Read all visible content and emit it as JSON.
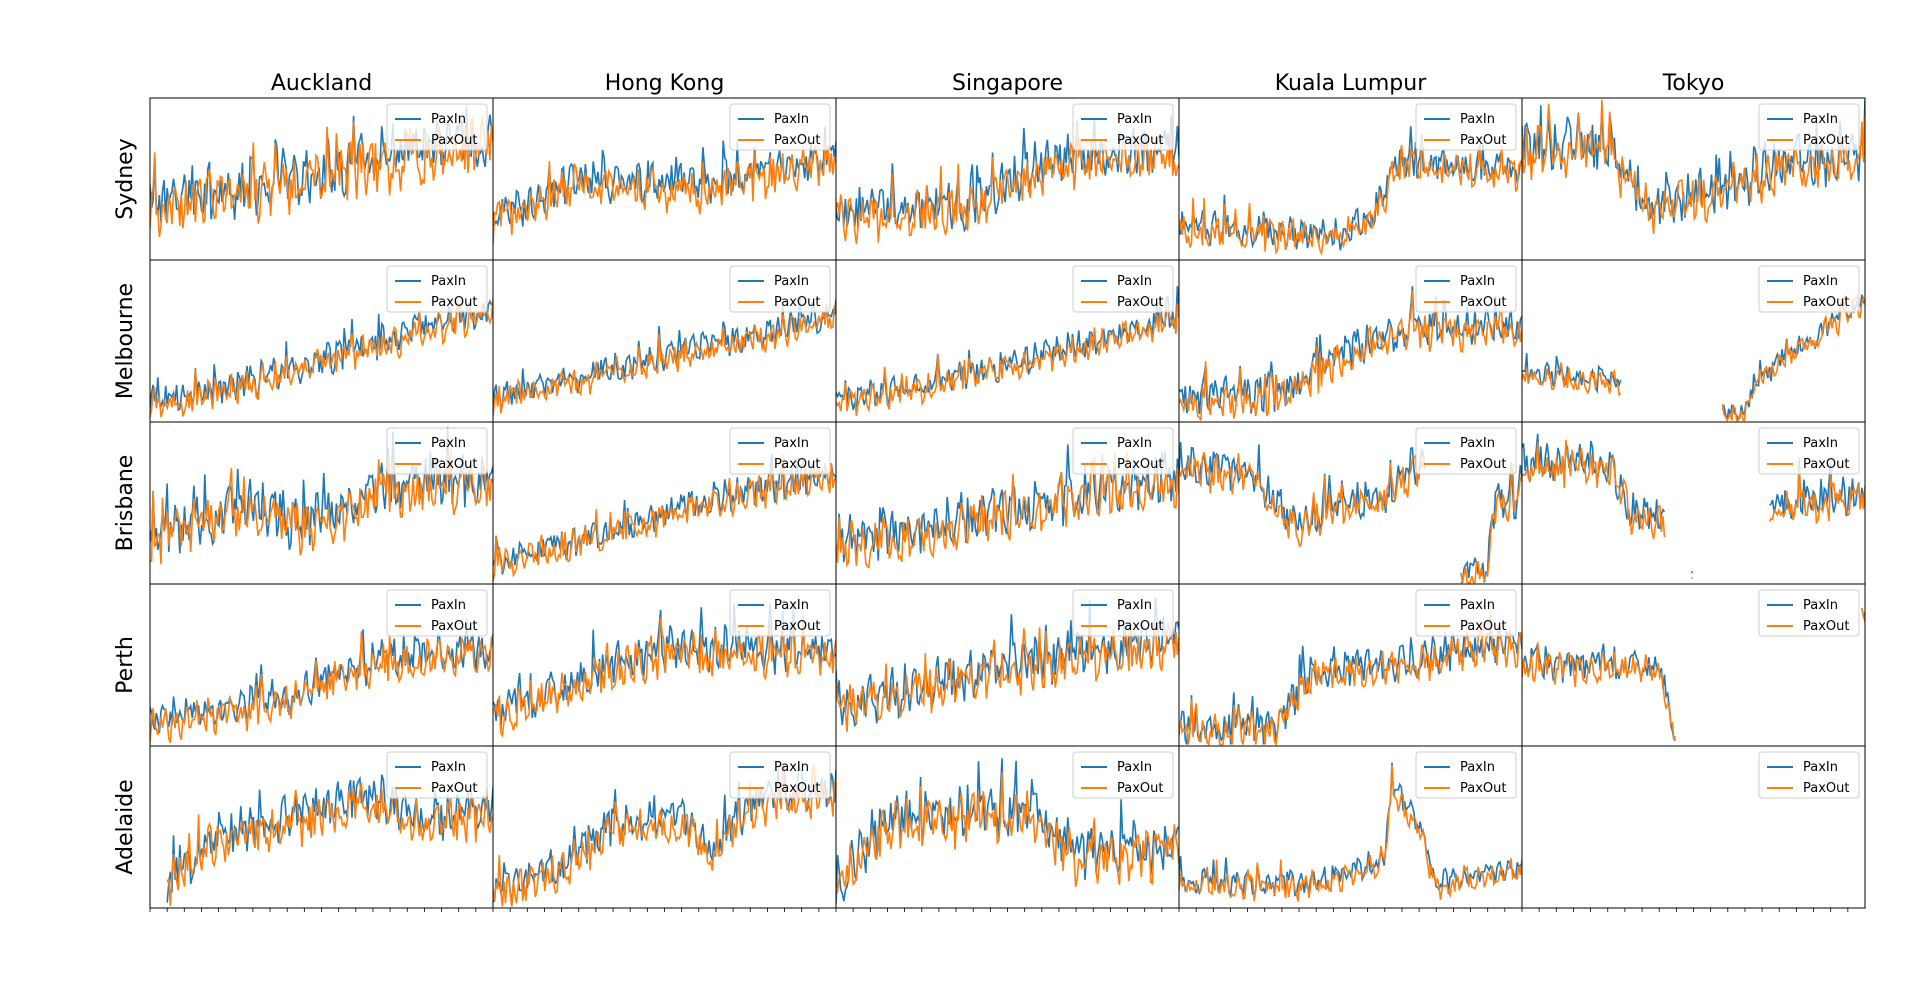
{
  "figure": {
    "columns": [
      "Auckland",
      "Hong Kong",
      "Singapore",
      "Kuala Lumpur",
      "Tokyo"
    ],
    "rows": [
      "Sydney",
      "Melbourne",
      "Brisbane",
      "Perth",
      "Adelaide"
    ],
    "legend": [
      "PaxIn",
      "PaxOut"
    ],
    "colors": {
      "PaxIn": "#1f77b4",
      "PaxOut": "#ff7f0e"
    }
  },
  "chart_data": {
    "type": "line",
    "grid": false,
    "legend_position": "upper right",
    "x_ticks_per_panel": 20,
    "y_scale": "independent per panel, no tick labels",
    "series_names": [
      "PaxIn",
      "PaxOut"
    ],
    "panels": [
      {
        "row": "Sydney",
        "col": "Auckland",
        "profile": [
          [
            0,
            0.35
          ],
          [
            0.3,
            0.45
          ],
          [
            0.6,
            0.6
          ],
          [
            1,
            0.75
          ]
        ],
        "amp": 0.18,
        "seed": 11
      },
      {
        "row": "Sydney",
        "col": "Hong Kong",
        "profile": [
          [
            0,
            0.25
          ],
          [
            0.25,
            0.5
          ],
          [
            0.6,
            0.45
          ],
          [
            1,
            0.65
          ]
        ],
        "amp": 0.13,
        "seed": 12
      },
      {
        "row": "Sydney",
        "col": "Singapore",
        "profile": [
          [
            0,
            0.3
          ],
          [
            0.4,
            0.35
          ],
          [
            0.6,
            0.6
          ],
          [
            1,
            0.68
          ]
        ],
        "amp": 0.15,
        "seed": 13
      },
      {
        "row": "Sydney",
        "col": "Kuala Lumpur",
        "profile": [
          [
            0,
            0.2
          ],
          [
            0.25,
            0.18
          ],
          [
            0.45,
            0.15
          ],
          [
            0.55,
            0.25
          ],
          [
            0.65,
            0.6
          ],
          [
            1,
            0.55
          ]
        ],
        "amp": 0.1,
        "seed": 14
      },
      {
        "row": "Sydney",
        "col": "Tokyo",
        "profile": [
          [
            0,
            0.7
          ],
          [
            0.25,
            0.72
          ],
          [
            0.35,
            0.35
          ],
          [
            0.6,
            0.45
          ],
          [
            0.75,
            0.6
          ],
          [
            1,
            0.65
          ]
        ],
        "amp": 0.16,
        "seed": 15
      },
      {
        "row": "Melbourne",
        "col": "Auckland",
        "profile": [
          [
            0,
            0.12
          ],
          [
            0.3,
            0.25
          ],
          [
            0.6,
            0.45
          ],
          [
            1,
            0.7
          ]
        ],
        "amp": 0.1,
        "seed": 21
      },
      {
        "row": "Melbourne",
        "col": "Hong Kong",
        "profile": [
          [
            0,
            0.15
          ],
          [
            0.4,
            0.35
          ],
          [
            0.8,
            0.55
          ],
          [
            1,
            0.68
          ]
        ],
        "amp": 0.09,
        "seed": 22
      },
      {
        "row": "Melbourne",
        "col": "Singapore",
        "profile": [
          [
            0,
            0.12
          ],
          [
            0.5,
            0.35
          ],
          [
            1,
            0.65
          ]
        ],
        "amp": 0.09,
        "seed": 23
      },
      {
        "row": "Melbourne",
        "col": "Kuala Lumpur",
        "profile": [
          [
            0,
            0.15
          ],
          [
            0.3,
            0.18
          ],
          [
            0.5,
            0.45
          ],
          [
            0.7,
            0.6
          ],
          [
            1,
            0.58
          ]
        ],
        "amp": 0.12,
        "seed": 24
      },
      {
        "row": "Melbourne",
        "col": "Tokyo",
        "profile": [
          [
            0,
            0.3
          ],
          [
            0.29,
            0.25
          ],
          [
            0.29,
            null
          ],
          [
            0.58,
            null
          ],
          [
            0.58,
            0.05
          ],
          [
            0.65,
            0.05
          ],
          [
            0.68,
            0.25
          ],
          [
            0.8,
            0.45
          ],
          [
            1,
            0.75
          ]
        ],
        "amp": 0.07,
        "seed": 25
      },
      {
        "row": "Brisbane",
        "col": "Auckland",
        "profile": [
          [
            0,
            0.3
          ],
          [
            0.3,
            0.5
          ],
          [
            0.45,
            0.35
          ],
          [
            0.7,
            0.6
          ],
          [
            1,
            0.65
          ]
        ],
        "amp": 0.16,
        "seed": 31
      },
      {
        "row": "Brisbane",
        "col": "Hong Kong",
        "profile": [
          [
            0,
            0.15
          ],
          [
            0.3,
            0.3
          ],
          [
            0.6,
            0.5
          ],
          [
            1,
            0.7
          ]
        ],
        "amp": 0.1,
        "seed": 32
      },
      {
        "row": "Brisbane",
        "col": "Singapore",
        "profile": [
          [
            0,
            0.25
          ],
          [
            0.5,
            0.45
          ],
          [
            1,
            0.65
          ]
        ],
        "amp": 0.15,
        "seed": 33
      },
      {
        "row": "Brisbane",
        "col": "Kuala Lumpur",
        "profile": [
          [
            0,
            0.75
          ],
          [
            0.2,
            0.7
          ],
          [
            0.35,
            0.35
          ],
          [
            0.45,
            0.5
          ],
          [
            0.6,
            0.55
          ],
          [
            0.72,
            0.8
          ],
          [
            0.72,
            null
          ],
          [
            0.82,
            null
          ],
          [
            0.82,
            0.05
          ],
          [
            0.9,
            0.1
          ],
          [
            0.92,
            0.5
          ],
          [
            1,
            0.55
          ]
        ],
        "amp": 0.12,
        "seed": 34
      },
      {
        "row": "Brisbane",
        "col": "Tokyo",
        "profile": [
          [
            0,
            0.75
          ],
          [
            0.25,
            0.75
          ],
          [
            0.32,
            0.45
          ],
          [
            0.42,
            0.4
          ],
          [
            0.42,
            null
          ],
          [
            0.49,
            null
          ],
          [
            0.49,
            0.05
          ],
          [
            0.5,
            0.05
          ],
          [
            0.5,
            null
          ],
          [
            0.72,
            null
          ],
          [
            0.72,
            0.5
          ],
          [
            1,
            0.55
          ]
        ],
        "amp": 0.12,
        "seed": 35
      },
      {
        "row": "Perth",
        "col": "Auckland",
        "profile": [
          [
            0,
            0.15
          ],
          [
            0.4,
            0.3
          ],
          [
            0.7,
            0.55
          ],
          [
            1,
            0.6
          ]
        ],
        "amp": 0.12,
        "seed": 41
      },
      {
        "row": "Perth",
        "col": "Hong Kong",
        "profile": [
          [
            0,
            0.2
          ],
          [
            0.3,
            0.45
          ],
          [
            0.5,
            0.6
          ],
          [
            1,
            0.6
          ]
        ],
        "amp": 0.14,
        "seed": 42
      },
      {
        "row": "Perth",
        "col": "Singapore",
        "profile": [
          [
            0,
            0.25
          ],
          [
            0.5,
            0.5
          ],
          [
            1,
            0.65
          ]
        ],
        "amp": 0.15,
        "seed": 43
      },
      {
        "row": "Perth",
        "col": "Kuala Lumpur",
        "profile": [
          [
            0,
            0.12
          ],
          [
            0.28,
            0.12
          ],
          [
            0.38,
            0.45
          ],
          [
            0.7,
            0.55
          ],
          [
            1,
            0.65
          ]
        ],
        "amp": 0.12,
        "seed": 44
      },
      {
        "row": "Perth",
        "col": "Tokyo",
        "profile": [
          [
            0,
            0.5
          ],
          [
            0.4,
            0.5
          ],
          [
            0.45,
            0.05
          ],
          [
            0.45,
            null
          ],
          [
            0.99,
            null
          ],
          [
            0.99,
            0.85
          ],
          [
            1,
            0.8
          ]
        ],
        "amp": 0.1,
        "seed": 45
      },
      {
        "row": "Adelaide",
        "col": "Auckland",
        "profile": [
          [
            0,
            null
          ],
          [
            0.05,
            null
          ],
          [
            0.05,
            0.15
          ],
          [
            0.2,
            0.45
          ],
          [
            0.5,
            0.6
          ],
          [
            0.65,
            0.7
          ],
          [
            0.8,
            0.55
          ],
          [
            1,
            0.6
          ]
        ],
        "amp": 0.14,
        "seed": 51
      },
      {
        "row": "Adelaide",
        "col": "Hong Kong",
        "profile": [
          [
            0,
            0.1
          ],
          [
            0.2,
            0.25
          ],
          [
            0.35,
            0.5
          ],
          [
            0.55,
            0.55
          ],
          [
            0.65,
            0.35
          ],
          [
            0.75,
            0.65
          ],
          [
            1,
            0.7
          ]
        ],
        "amp": 0.12,
        "seed": 52
      },
      {
        "row": "Adelaide",
        "col": "Singapore",
        "profile": [
          [
            0,
            0.15
          ],
          [
            0.15,
            0.55
          ],
          [
            0.55,
            0.6
          ],
          [
            0.7,
            0.35
          ],
          [
            1,
            0.38
          ]
        ],
        "amp": 0.16,
        "seed": 53
      },
      {
        "row": "Adelaide",
        "col": "Kuala Lumpur",
        "profile": [
          [
            0,
            0.15
          ],
          [
            0.4,
            0.15
          ],
          [
            0.6,
            0.3
          ],
          [
            0.62,
            0.75
          ],
          [
            0.7,
            0.5
          ],
          [
            0.75,
            0.15
          ],
          [
            1,
            0.25
          ]
        ],
        "amp": 0.08,
        "seed": 54
      },
      {
        "row": "Adelaide",
        "col": "Tokyo",
        "profile": [
          [
            0,
            null
          ],
          [
            1,
            null
          ]
        ],
        "amp": 0.1,
        "seed": 55
      }
    ]
  }
}
